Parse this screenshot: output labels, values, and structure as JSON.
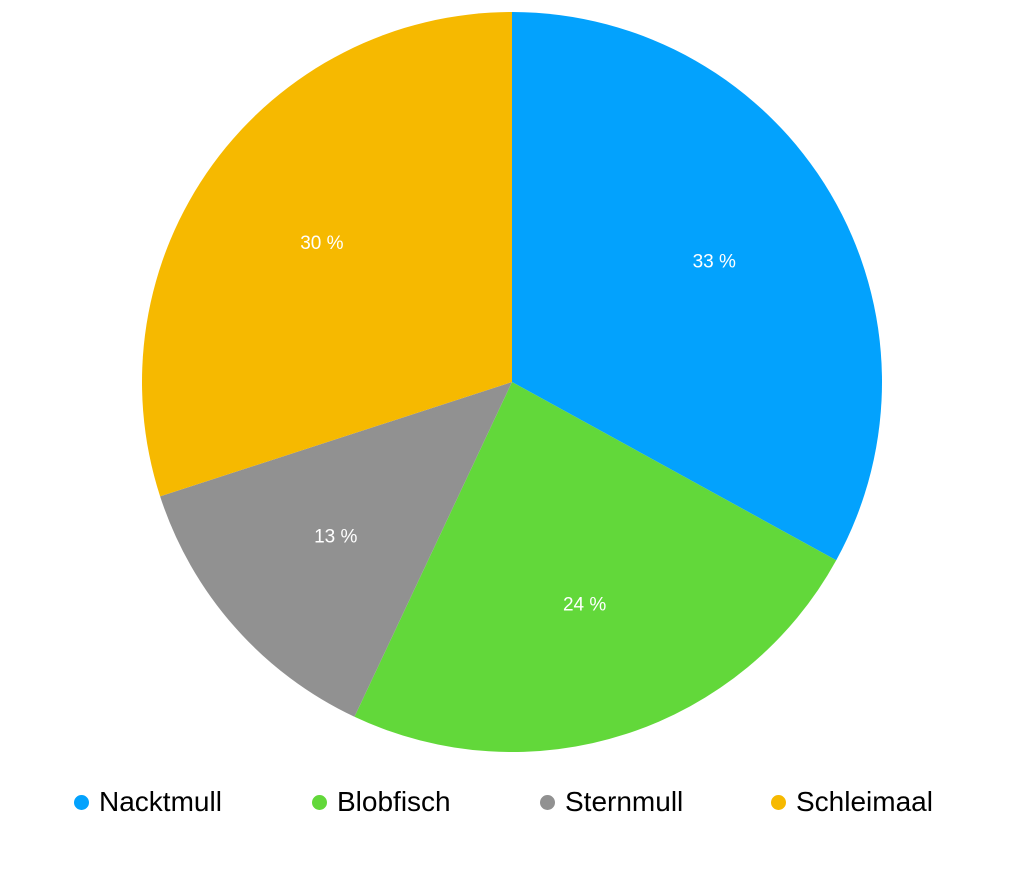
{
  "chart_data": {
    "type": "pie",
    "categories": [
      "Nacktmull",
      "Blobfisch",
      "Sternmull",
      "Schleimaal"
    ],
    "values": [
      33,
      24,
      13,
      30
    ],
    "value_labels": [
      "33 %",
      "24 %",
      "13 %",
      "30 %"
    ],
    "colors": [
      "#03a2fd",
      "#62d83a",
      "#919191",
      "#f6b900"
    ],
    "start": "12 o'clock",
    "direction": "clockwise",
    "legend_position": "bottom"
  }
}
